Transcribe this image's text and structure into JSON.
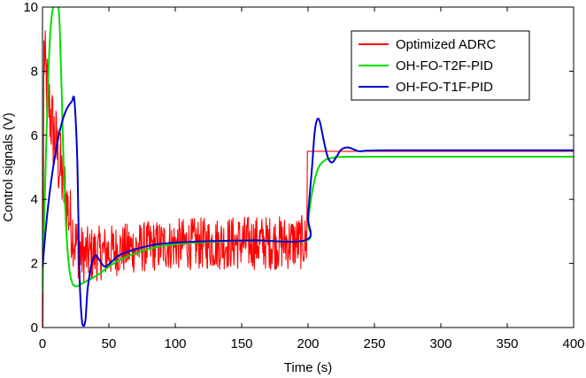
{
  "chart_data": {
    "type": "line",
    "title": "",
    "xlabel": "Time (s)",
    "ylabel": "Control signals (V)",
    "xlim": [
      0,
      400
    ],
    "ylim": [
      0,
      10
    ],
    "xticks": [
      0,
      50,
      100,
      150,
      200,
      250,
      300,
      350,
      400
    ],
    "yticks": [
      0,
      2,
      4,
      6,
      8,
      10
    ],
    "grid": false,
    "legend_position": "top-right",
    "series": [
      {
        "name": "Optimized ADRC",
        "color": "#ff0000",
        "noise": [
          [
            0,
            1.2
          ],
          [
            10,
            1.3
          ],
          [
            20,
            1.1
          ],
          [
            30,
            0.9
          ],
          [
            60,
            0.8
          ],
          [
            100,
            0.8
          ],
          [
            150,
            0.85
          ],
          [
            199,
            0.85
          ],
          [
            200,
            0
          ]
        ],
        "points": [
          [
            0,
            0
          ],
          [
            0.5,
            0
          ],
          [
            1,
            8.6
          ],
          [
            3,
            7.6
          ],
          [
            6,
            6.6
          ],
          [
            10,
            5.7
          ],
          [
            15,
            4.6
          ],
          [
            20,
            3.5
          ],
          [
            25,
            2.6
          ],
          [
            30,
            2.25
          ],
          [
            40,
            2.3
          ],
          [
            60,
            2.45
          ],
          [
            100,
            2.6
          ],
          [
            150,
            2.65
          ],
          [
            199,
            2.65
          ],
          [
            199.5,
            5.5
          ],
          [
            400,
            5.5
          ]
        ]
      },
      {
        "name": "OH-FO-T2F-PID",
        "color": "#00dd00",
        "points": [
          [
            0,
            1.1
          ],
          [
            2,
            4.5
          ],
          [
            5,
            8.5
          ],
          [
            8,
            10
          ],
          [
            12,
            10
          ],
          [
            14,
            8.0
          ],
          [
            16,
            5.0
          ],
          [
            18,
            3.0
          ],
          [
            20,
            1.9
          ],
          [
            22,
            1.45
          ],
          [
            24,
            1.3
          ],
          [
            27,
            1.3
          ],
          [
            30,
            1.38
          ],
          [
            40,
            1.6
          ],
          [
            50,
            1.9
          ],
          [
            60,
            2.15
          ],
          [
            80,
            2.45
          ],
          [
            100,
            2.6
          ],
          [
            130,
            2.68
          ],
          [
            160,
            2.72
          ],
          [
            199,
            2.72
          ],
          [
            200,
            3.3
          ],
          [
            203,
            4.2
          ],
          [
            207,
            4.9
          ],
          [
            212,
            5.2
          ],
          [
            220,
            5.3
          ],
          [
            240,
            5.33
          ],
          [
            400,
            5.33
          ]
        ]
      },
      {
        "name": "OH-FO-T1F-PID",
        "color": "#0000cc",
        "points": [
          [
            0,
            1.9
          ],
          [
            3,
            3.3
          ],
          [
            6,
            4.4
          ],
          [
            10,
            5.5
          ],
          [
            14,
            6.3
          ],
          [
            18,
            6.8
          ],
          [
            22,
            7.05
          ],
          [
            24,
            7.1
          ],
          [
            26,
            5.5
          ],
          [
            27,
            3.5
          ],
          [
            28,
            1.5
          ],
          [
            29.5,
            0.3
          ],
          [
            31,
            0.05
          ],
          [
            32.5,
            0.3
          ],
          [
            34,
            1.2
          ],
          [
            37,
            2.0
          ],
          [
            40,
            2.25
          ],
          [
            43,
            2.1
          ],
          [
            47,
            1.9
          ],
          [
            52,
            2.05
          ],
          [
            60,
            2.3
          ],
          [
            80,
            2.55
          ],
          [
            100,
            2.65
          ],
          [
            130,
            2.7
          ],
          [
            160,
            2.72
          ],
          [
            199,
            2.74
          ],
          [
            200,
            3.5
          ],
          [
            203,
            5.0
          ],
          [
            205,
            6.1
          ],
          [
            207,
            6.5
          ],
          [
            209,
            6.4
          ],
          [
            212,
            5.8
          ],
          [
            215,
            5.3
          ],
          [
            218,
            5.15
          ],
          [
            221,
            5.3
          ],
          [
            225,
            5.55
          ],
          [
            230,
            5.62
          ],
          [
            235,
            5.55
          ],
          [
            240,
            5.5
          ],
          [
            260,
            5.53
          ],
          [
            400,
            5.53
          ]
        ]
      }
    ]
  }
}
